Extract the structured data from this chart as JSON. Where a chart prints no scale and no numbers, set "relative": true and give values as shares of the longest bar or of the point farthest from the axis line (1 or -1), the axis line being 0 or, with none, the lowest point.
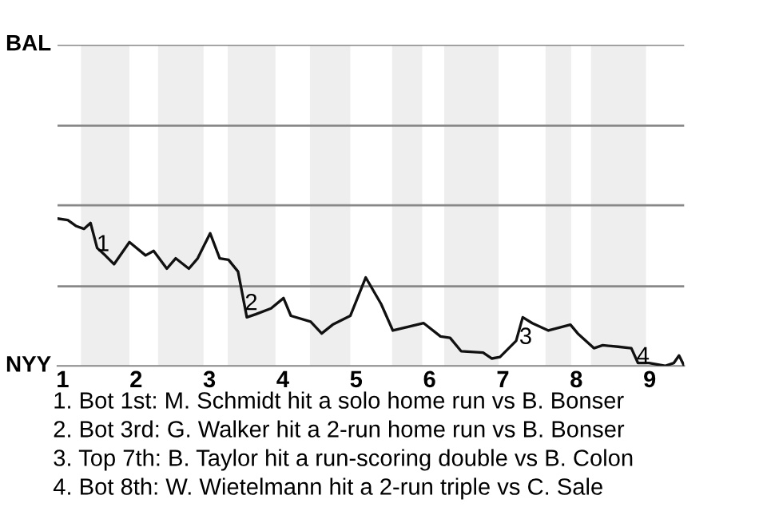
{
  "chart_data": {
    "type": "line",
    "relative": true,
    "x": [
      0.93,
      1.07,
      1.18,
      1.29,
      1.38,
      1.47,
      1.58,
      1.7,
      1.91,
      2.13,
      2.24,
      2.42,
      2.54,
      2.72,
      2.84,
      3.01,
      3.14,
      3.26,
      3.39,
      3.51,
      3.63,
      3.84,
      4.01,
      4.11,
      4.38,
      4.53,
      4.68,
      4.92,
      5.13,
      5.34,
      5.5,
      5.92,
      6.15,
      6.28,
      6.43,
      6.73,
      6.85,
      6.96,
      7.18,
      7.27,
      7.4,
      7.62,
      7.92,
      8.02,
      8.24,
      8.36,
      8.57,
      8.75,
      8.84,
      8.99,
      9.21,
      9.33,
      9.4,
      9.47
    ],
    "series": [
      {
        "color": "#111111",
        "values": [
          1,
          0.99,
          0.95,
          0.93,
          0.97,
          0.8,
          0.75,
          0.69,
          0.84,
          0.75,
          0.78,
          0.66,
          0.73,
          0.66,
          0.73,
          0.9,
          0.73,
          0.72,
          0.64,
          0.33,
          0.35,
          0.39,
          0.46,
          0.34,
          0.3,
          0.22,
          0.28,
          0.34,
          0.6,
          0.42,
          0.24,
          0.29,
          0.2,
          0.19,
          0.1,
          0.09,
          0.05,
          0.06,
          0.17,
          0.33,
          0.29,
          0.24,
          0.28,
          0.22,
          0.12,
          0.14,
          0.13,
          0.12,
          0.02,
          0.02,
          0,
          0.02,
          0.07,
          0
        ]
      }
    ],
    "xlim": [
      0.93,
      9.47
    ],
    "xticks": [
      1,
      2,
      3,
      4,
      5,
      6,
      7,
      8,
      9
    ],
    "marker": "none",
    "line_style": "solid",
    "ref_lines": [
      {
        "axis": "y",
        "value": 0.54,
        "color": "#888888"
      },
      {
        "axis": "y",
        "value": 1.09,
        "color": "#888888"
      },
      {
        "axis": "y",
        "value": 1.63,
        "color": "#888888"
      },
      {
        "axis": "y",
        "value": 2.18,
        "color": "#888888"
      }
    ],
    "bands": [
      {
        "axis": "x",
        "from": 1.25,
        "to": 1.91,
        "color": "#eeeeee"
      },
      {
        "axis": "x",
        "from": 2.3,
        "to": 2.92,
        "color": "#eeeeee"
      },
      {
        "axis": "x",
        "from": 3.25,
        "to": 3.9,
        "color": "#eeeeee"
      },
      {
        "axis": "x",
        "from": 4.37,
        "to": 4.92,
        "color": "#eeeeee"
      },
      {
        "axis": "x",
        "from": 5.49,
        "to": 5.9,
        "color": "#eeeeee"
      },
      {
        "axis": "x",
        "from": 6.2,
        "to": 6.94,
        "color": "#eeeeee"
      },
      {
        "axis": "x",
        "from": 7.58,
        "to": 7.93,
        "color": "#eeeeee"
      },
      {
        "axis": "x",
        "from": 8.2,
        "to": 8.95,
        "color": "#eeeeee"
      }
    ],
    "annotations": [
      "BAL",
      "NYY",
      {
        "text": "1",
        "x": 1.55,
        "y": 0.82
      },
      {
        "text": "2",
        "x": 3.57,
        "y": 0.42
      },
      {
        "text": "3",
        "x": 7.31,
        "y": 0.19
      },
      {
        "text": "4",
        "x": 8.91,
        "y": 0.06
      },
      "1. Bot 1st: M. Schmidt hit a solo home run vs B. Bonser",
      "2. Bot 3rd: G. Walker hit a 2-run home run vs B. Bonser",
      "3. Top 7th: B. Taylor hit a run-scoring double vs B. Colon",
      "4. Bot 8th: W. Wietelmann hit a 2-run triple vs C. Sale"
    ]
  }
}
